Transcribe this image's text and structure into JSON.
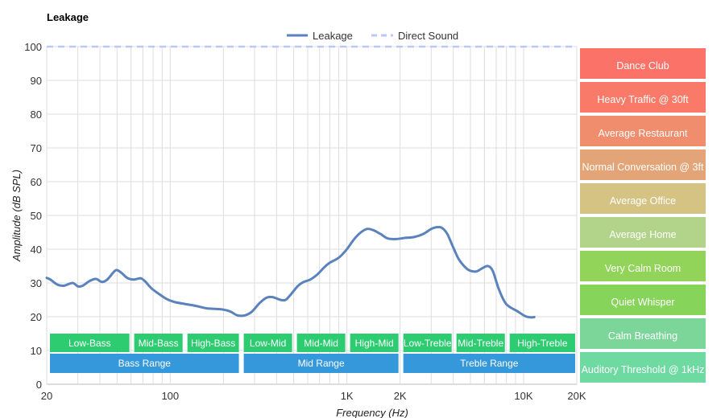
{
  "chart_data": {
    "type": "line",
    "title": "Leakage",
    "xlabel": "Frequency (Hz)",
    "ylabel": "Amplitude (dB SPL)",
    "x_scale": "log",
    "xlim": [
      20,
      20000
    ],
    "ylim": [
      0,
      100
    ],
    "grid": true,
    "legend_position": "top-center",
    "x_tick_labels": [
      {
        "value": 20,
        "label": "20"
      },
      {
        "value": 100,
        "label": "100"
      },
      {
        "value": 1000,
        "label": "1K"
      },
      {
        "value": 2000,
        "label": "2K"
      },
      {
        "value": 10000,
        "label": "10K"
      },
      {
        "value": 20000,
        "label": "20K"
      }
    ],
    "y_ticks": [
      0,
      10,
      20,
      30,
      40,
      50,
      60,
      70,
      80,
      90,
      100
    ],
    "series": [
      {
        "name": "Leakage",
        "color": "#5a82bd",
        "style": "solid",
        "points": [
          [
            20,
            31.5
          ],
          [
            21,
            31
          ],
          [
            23,
            29.5
          ],
          [
            25,
            29.2
          ],
          [
            28,
            30
          ],
          [
            30,
            29
          ],
          [
            32,
            29.2
          ],
          [
            35,
            30.6
          ],
          [
            38,
            31.2
          ],
          [
            41,
            30.3
          ],
          [
            44,
            31
          ],
          [
            48,
            33.3
          ],
          [
            50,
            33.8
          ],
          [
            53,
            33
          ],
          [
            57,
            31.5
          ],
          [
            62,
            31
          ],
          [
            68,
            31.4
          ],
          [
            72,
            30.5
          ],
          [
            78,
            28.5
          ],
          [
            85,
            27
          ],
          [
            95,
            25.3
          ],
          [
            105,
            24.4
          ],
          [
            120,
            23.8
          ],
          [
            140,
            23.2
          ],
          [
            160,
            22.5
          ],
          [
            180,
            22.3
          ],
          [
            200,
            22.1
          ],
          [
            220,
            21.5
          ],
          [
            240,
            20.4
          ],
          [
            265,
            20.4
          ],
          [
            290,
            21.5
          ],
          [
            320,
            24
          ],
          [
            350,
            25.6
          ],
          [
            380,
            25.8
          ],
          [
            420,
            25
          ],
          [
            450,
            25
          ],
          [
            480,
            26.5
          ],
          [
            530,
            29.2
          ],
          [
            570,
            30.3
          ],
          [
            620,
            31
          ],
          [
            680,
            32.5
          ],
          [
            740,
            34.5
          ],
          [
            800,
            36
          ],
          [
            900,
            37.5
          ],
          [
            1000,
            40
          ],
          [
            1100,
            43
          ],
          [
            1200,
            45
          ],
          [
            1300,
            46
          ],
          [
            1400,
            45.7
          ],
          [
            1550,
            44.5
          ],
          [
            1700,
            43.2
          ],
          [
            1900,
            43
          ],
          [
            2100,
            43.3
          ],
          [
            2400,
            43.6
          ],
          [
            2700,
            44.5
          ],
          [
            3000,
            46
          ],
          [
            3200,
            46.5
          ],
          [
            3450,
            46.3
          ],
          [
            3700,
            44.5
          ],
          [
            4000,
            40.5
          ],
          [
            4300,
            37
          ],
          [
            4700,
            34.5
          ],
          [
            5000,
            33.6
          ],
          [
            5400,
            33.4
          ],
          [
            5900,
            34.5
          ],
          [
            6300,
            35
          ],
          [
            6700,
            33.5
          ],
          [
            7200,
            28.5
          ],
          [
            7800,
            24.5
          ],
          [
            8300,
            23
          ],
          [
            9300,
            21.5
          ],
          [
            10200,
            20.2
          ],
          [
            11000,
            19.8
          ],
          [
            11500,
            19.9
          ]
        ]
      },
      {
        "name": "Direct Sound",
        "color": "#b9c9f3",
        "style": "dashed",
        "points": [
          [
            20,
            100
          ],
          [
            20000,
            100
          ]
        ]
      }
    ],
    "frequency_bands": {
      "detail": [
        {
          "label": "Low-Bass",
          "from": 20,
          "to": 60
        },
        {
          "label": "Mid-Bass",
          "from": 60,
          "to": 120
        },
        {
          "label": "High-Bass",
          "from": 120,
          "to": 250
        },
        {
          "label": "Low-Mid",
          "from": 250,
          "to": 500
        },
        {
          "label": "Mid-Mid",
          "from": 500,
          "to": 1000
        },
        {
          "label": "High-Mid",
          "from": 1000,
          "to": 2000
        },
        {
          "label": "Low-Treble",
          "from": 2000,
          "to": 4000
        },
        {
          "label": "Mid-Treble",
          "from": 4000,
          "to": 8000
        },
        {
          "label": "High-Treble",
          "from": 8000,
          "to": 20000
        }
      ],
      "range": [
        {
          "label": "Bass Range",
          "from": 20,
          "to": 250
        },
        {
          "label": "Mid Range",
          "from": 250,
          "to": 2000
        },
        {
          "label": "Treble Range",
          "from": 2000,
          "to": 20000
        }
      ],
      "color": "#2ecc71",
      "range_color": "#3498db"
    },
    "reference_levels": [
      {
        "label": "Dance Club",
        "level": 100,
        "color": "#fb7268"
      },
      {
        "label": "Heavy Traffic @ 30ft",
        "level": 90,
        "color": "#f97a68"
      },
      {
        "label": "Average Restaurant",
        "level": 80,
        "color": "#f08d6c"
      },
      {
        "label": "Normal Conversation @ 3ft",
        "level": 70,
        "color": "#e3a577"
      },
      {
        "label": "Average Office",
        "level": 60,
        "color": "#d5c384"
      },
      {
        "label": "Average Home",
        "level": 50,
        "color": "#b2d38a"
      },
      {
        "label": "Very Calm Room",
        "level": 40,
        "color": "#92d35a"
      },
      {
        "label": "Quiet Whisper",
        "level": 30,
        "color": "#87d45a"
      },
      {
        "label": "Calm Breathing",
        "level": 20,
        "color": "#7dd699"
      },
      {
        "label": "Auditory Threshold @ 1kHz",
        "level": 10,
        "color": "#6fd9a2"
      }
    ]
  }
}
